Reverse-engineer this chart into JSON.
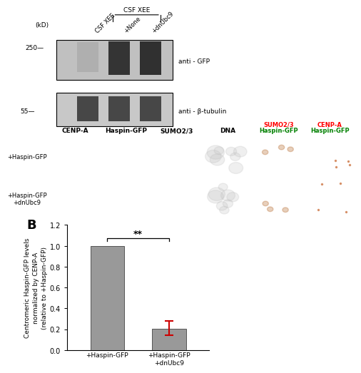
{
  "bar_values": [
    1.0,
    0.205
  ],
  "bar_errors_up": [
    0.0,
    0.075
  ],
  "bar_errors_down": [
    0.0,
    0.065
  ],
  "bar_colors": [
    "#999999",
    "#999999"
  ],
  "bar_labels": [
    "+Haspin-GFP",
    "+Haspin-GFP\n+dnUbc9"
  ],
  "ylabel_line1": "Centromeric Haspin-GFP levels",
  "ylabel_line2": "normalized by CENP-A",
  "ylabel_line3": "(relative to +Haspin-GFP)",
  "ylim": [
    0.0,
    1.2
  ],
  "yticks": [
    0.0,
    0.2,
    0.4,
    0.6,
    0.8,
    1.0,
    1.2
  ],
  "significance_text": "**",
  "error_color": "#cc0000",
  "panel_label": "B",
  "figure_width": 4.74,
  "figure_height": 4.74,
  "bar_width": 0.55,
  "wb_lane_labels": [
    "CSF XEE",
    "+None",
    "+dnUbc9"
  ],
  "wb_kd_labels": [
    "250",
    "55"
  ],
  "wb_anti_labels": [
    "anti - GFP",
    "anti - β-tubulin"
  ],
  "col_labels": [
    "CENP-A",
    "Haspin-GFP",
    "SUMO2/3",
    "DNA"
  ],
  "col_labels_overlay1": [
    "SUMO2/3",
    "CENP-A"
  ],
  "col_labels_overlay2": [
    "Haspin-GFP",
    "Haspin-GFP"
  ],
  "row_labels": [
    "+Haspin-GFP",
    "+Haspin-GFP\n+dnUbc9"
  ],
  "csf_xee_bracket_label": "CSF XEE"
}
